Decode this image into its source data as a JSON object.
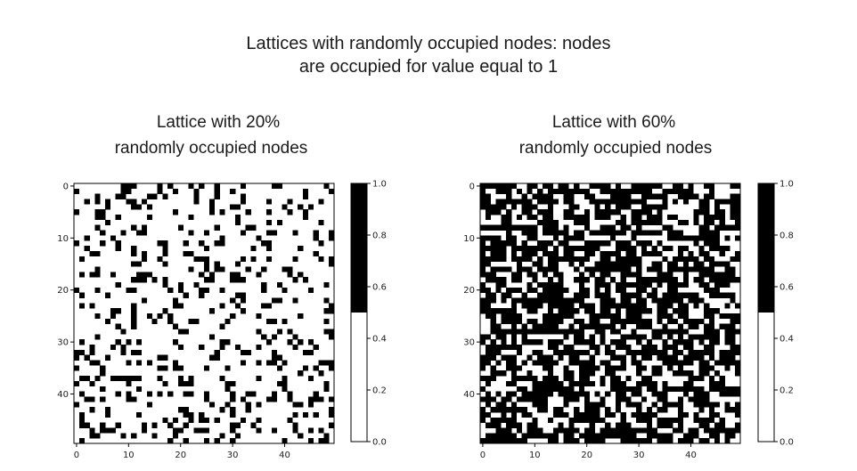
{
  "title_lines": [
    "Lattices with randomly occupied nodes: nodes",
    "are occupied for value equal to 1"
  ],
  "colors": {
    "occupied": "#000000",
    "empty": "#ffffff",
    "frame": "#000000"
  },
  "chart_data": [
    {
      "type": "heatmap",
      "title_lines": [
        "Lattice with 20%",
        "randomly occupied nodes"
      ],
      "occupancy": 0.2,
      "grid_size": 50,
      "x_ticks": [
        0,
        10,
        20,
        30,
        40
      ],
      "y_ticks": [
        0,
        10,
        20,
        30,
        40
      ],
      "colorbar": {
        "ticks": [
          "0.0",
          "0.2",
          "0.4",
          "0.6",
          "0.8",
          "1.0"
        ],
        "range": [
          0,
          1
        ],
        "threshold": 0.5
      }
    },
    {
      "type": "heatmap",
      "title_lines": [
        "Lattice with 60%",
        "randomly occupied nodes"
      ],
      "occupancy": 0.6,
      "grid_size": 50,
      "x_ticks": [
        0,
        10,
        20,
        30,
        40
      ],
      "y_ticks": [
        0,
        10,
        20,
        30,
        40
      ],
      "colorbar": {
        "ticks": [
          "0.0",
          "0.2",
          "0.4",
          "0.6",
          "0.8",
          "1.0"
        ],
        "range": [
          0,
          1
        ],
        "threshold": 0.5
      }
    }
  ]
}
